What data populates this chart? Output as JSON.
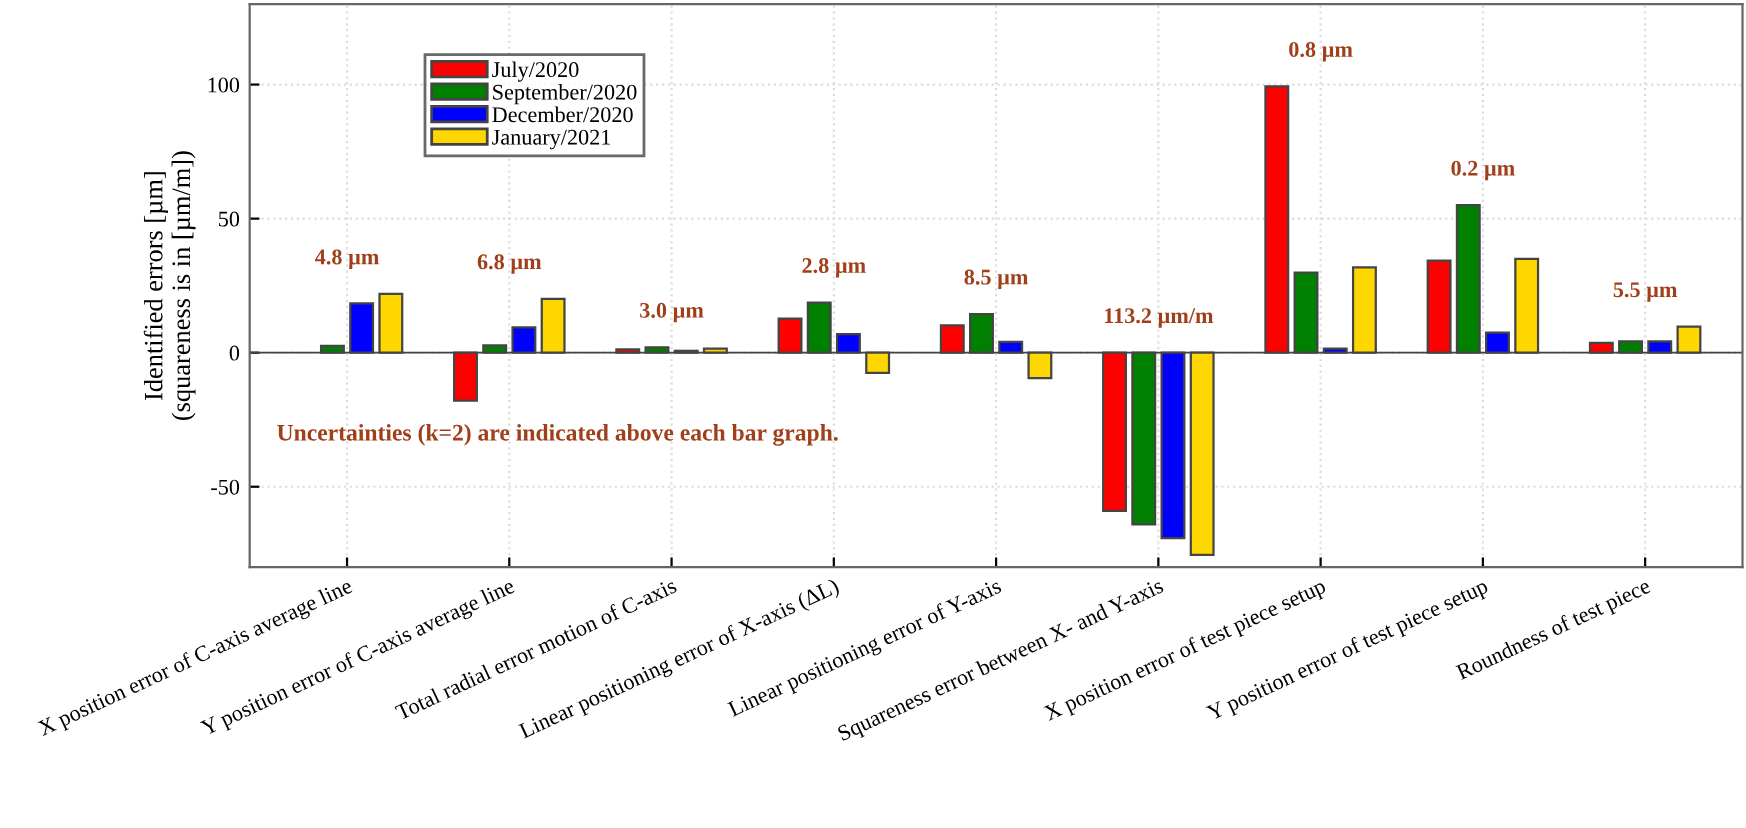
{
  "chart_data": {
    "type": "bar",
    "ylabel": "Identified errors [µm]\n(squareness is in [µm/m])",
    "categories": [
      "X position error of C-axis average line",
      "Y position error of C-axis average line",
      "Total radial error motion of C-axis",
      "Linear positioning error of X-axis (ΔL)",
      "Linear positioning error of Y-axis",
      "Squareness error between X- and Y-axis",
      "X position error of test piece setup",
      "Y position error of test piece setup",
      "Roundness of test piece"
    ],
    "series": [
      {
        "name": "July/2020",
        "color": "#ff0000",
        "values": [
          null,
          -17.9,
          1.2,
          12.7,
          10.2,
          -59,
          99.3,
          34.3,
          3.7
        ]
      },
      {
        "name": "September/2020",
        "color": "#008000",
        "values": [
          2.5,
          2.7,
          2,
          18.7,
          14.4,
          -64,
          29.9,
          55,
          4.2
        ]
      },
      {
        "name": "December/2020",
        "color": "#0000ff",
        "values": [
          18.4,
          9.4,
          0.7,
          6.9,
          4,
          -69.2,
          1.5,
          7.5,
          4.2
        ]
      },
      {
        "name": "January/2021",
        "color": "#ffd700",
        "values": [
          21.9,
          20.1,
          1.5,
          -7.5,
          -9.5,
          -75.4,
          31.8,
          35,
          9.7
        ]
      }
    ],
    "annotations": [
      "4.8 µm",
      "6.8 µm",
      "3.0 µm",
      "2.8 µm",
      "8.5 µm",
      "113.2 µm/m",
      "0.8 µm",
      "0.2 µm",
      "5.5 µm",
      "Uncertainties (k=2) are indicated above each bar graph."
    ],
    "ylim": [
      -80,
      130
    ],
    "yticks": [
      -50,
      0,
      50,
      100
    ],
    "grid": true,
    "legend": "top left"
  }
}
